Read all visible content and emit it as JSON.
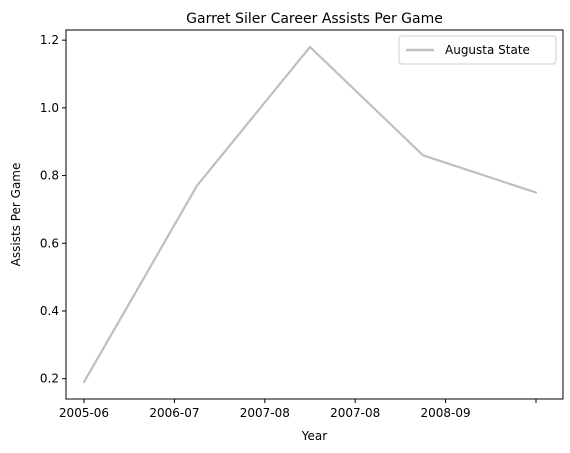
{
  "chart_data": {
    "type": "line",
    "title": "Garret Siler Career Assists Per Game",
    "xlabel": "Year",
    "ylabel": "Assists Per Game",
    "x_tick_labels": [
      "2005-06",
      "2006-07",
      "2007-08",
      "2007-08",
      "2008-09",
      ""
    ],
    "series": [
      {
        "name": "Augusta State",
        "color": "#bfbfbf",
        "values": [
          0.19,
          0.77,
          1.18,
          0.86,
          0.75
        ]
      }
    ],
    "y_ticks": [
      0.2,
      0.4,
      0.6,
      0.8,
      1.0,
      1.2
    ],
    "ylim": [
      0.14,
      1.23
    ],
    "grid": false,
    "legend_position": "top-right"
  }
}
